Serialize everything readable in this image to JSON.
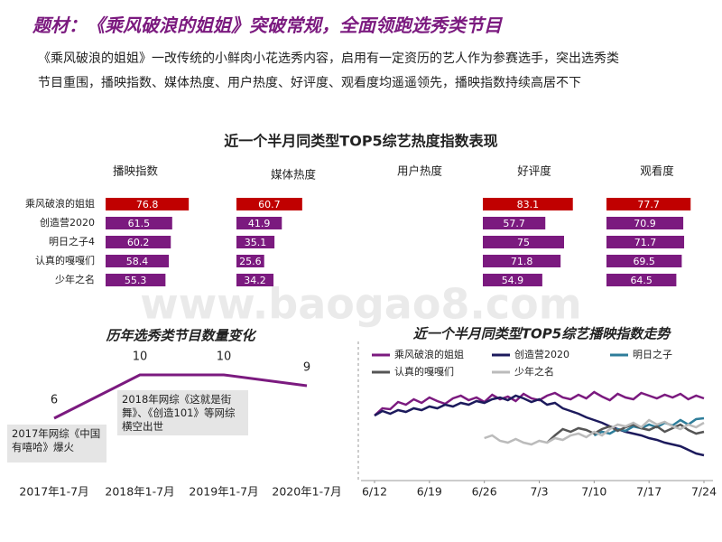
{
  "header": {
    "title": "题材：《乘风破浪的姐姐》突破常规，全面领跑选秀类节目",
    "body": "《乘风破浪的姐姐》一改传统的小鲜肉小花选秀内容，启用有一定资历的艺人作为参赛选手，突出选秀类节目重围，播映指数、媒体热度、用户热度、好评度、观看度均遥遥领先，播映指数持续高居不下"
  },
  "watermark": "www.baogao8.com",
  "chart_data": [
    {
      "type": "hbar_panels",
      "title": "近一个半月同类型TOP5综艺热度指数表现",
      "categories": [
        "乘风破浪的姐姐",
        "创造营2020",
        "明日之子4",
        "认真的嘎嘎们",
        "少年之名"
      ],
      "colors": [
        "#c00000",
        "#7b1a7f",
        "#7b1a7f",
        "#7b1a7f",
        "#7b1a7f"
      ],
      "xlim": [
        0,
        100
      ],
      "series": [
        {
          "name": "播映指数",
          "values": [
            76.8,
            61.5,
            60.2,
            58.4,
            55.3
          ]
        },
        {
          "name": "媒体热度",
          "values": [
            60.7,
            41.9,
            35.1,
            25.6,
            34.2
          ]
        },
        {
          "name": "用户热度",
          "values": [
            null,
            null,
            null,
            null,
            null
          ]
        },
        {
          "name": "好评度",
          "values": [
            83.1,
            57.7,
            75,
            71.8,
            54.9
          ]
        },
        {
          "name": "观看度",
          "values": [
            77.7,
            70.9,
            71.7,
            69.5,
            64.5
          ]
        }
      ]
    },
    {
      "type": "line",
      "title": "历年选秀类节目数量变化",
      "categories": [
        "2017年1-7月",
        "2018年1-7月",
        "2019年1-7月",
        "2020年1-7月"
      ],
      "values": [
        6,
        10,
        10,
        9
      ],
      "color": "#7b1a7f",
      "annotations": [
        "2017年网综《中国有嘻哈》爆火",
        "2018年网综《这就是街舞》、《创造101》等网综横空出世"
      ]
    },
    {
      "type": "multiline",
      "title": "近一个半月同类型TOP5综艺播映指数走势",
      "xlim": [
        0,
        42
      ],
      "xticks": [
        {
          "value": 0,
          "label": "6/12"
        },
        {
          "value": 7,
          "label": "6/19"
        },
        {
          "value": 14,
          "label": "6/26"
        },
        {
          "value": 21,
          "label": "7/3"
        },
        {
          "value": 28,
          "label": "7/10"
        },
        {
          "value": 35,
          "label": "7/17"
        },
        {
          "value": 42,
          "label": "7/24"
        }
      ],
      "series": [
        {
          "name": "乘风破浪的姐姐",
          "color": "#7b1a7f",
          "values": [
            60,
            68,
            67,
            75,
            72,
            78,
            74,
            80,
            76,
            73,
            79,
            82,
            77,
            80,
            75,
            83,
            78,
            81,
            76,
            84,
            79,
            77,
            82,
            85,
            80,
            78,
            83,
            79,
            86,
            81,
            77,
            84,
            80,
            78,
            85,
            82,
            79,
            83,
            80,
            84,
            78,
            82,
            79
          ]
        },
        {
          "name": "创造营2020",
          "color": "#1c1a5c",
          "values": [
            60,
            65,
            62,
            66,
            64,
            68,
            66,
            70,
            68,
            72,
            70,
            74,
            72,
            76,
            74,
            78,
            80,
            77,
            82,
            79,
            75,
            78,
            72,
            74,
            68,
            65,
            62,
            58,
            55,
            52,
            48,
            45,
            42,
            40,
            38,
            35,
            33,
            30,
            28,
            26,
            22,
            18,
            16
          ]
        },
        {
          "name": "明日之子",
          "color": "#2e7d9a",
          "values": [
            null,
            null,
            null,
            null,
            null,
            null,
            null,
            null,
            null,
            null,
            null,
            null,
            null,
            null,
            null,
            null,
            null,
            null,
            null,
            null,
            null,
            null,
            null,
            null,
            null,
            null,
            null,
            null,
            38,
            42,
            40,
            45,
            43,
            48,
            46,
            50,
            47,
            52,
            49,
            55,
            50,
            56,
            57
          ]
        },
        {
          "name": "认真的嘎嘎们",
          "color": "#555555",
          "values": [
            null,
            null,
            null,
            null,
            null,
            null,
            null,
            null,
            null,
            null,
            null,
            null,
            null,
            null,
            null,
            null,
            null,
            null,
            null,
            null,
            null,
            null,
            30,
            38,
            45,
            42,
            46,
            44,
            40,
            45,
            48,
            43,
            47,
            50,
            46,
            44,
            48,
            42,
            46,
            50,
            44,
            40,
            42
          ]
        },
        {
          "name": "少年之名",
          "color": "#bbbbbb",
          "values": [
            null,
            null,
            null,
            null,
            null,
            null,
            null,
            null,
            null,
            null,
            null,
            null,
            null,
            null,
            35,
            38,
            32,
            30,
            34,
            30,
            28,
            32,
            30,
            35,
            33,
            38,
            40,
            36,
            42,
            38,
            45,
            50,
            48,
            52,
            47,
            55,
            50,
            53,
            48,
            45,
            50,
            47,
            52
          ]
        }
      ]
    }
  ]
}
